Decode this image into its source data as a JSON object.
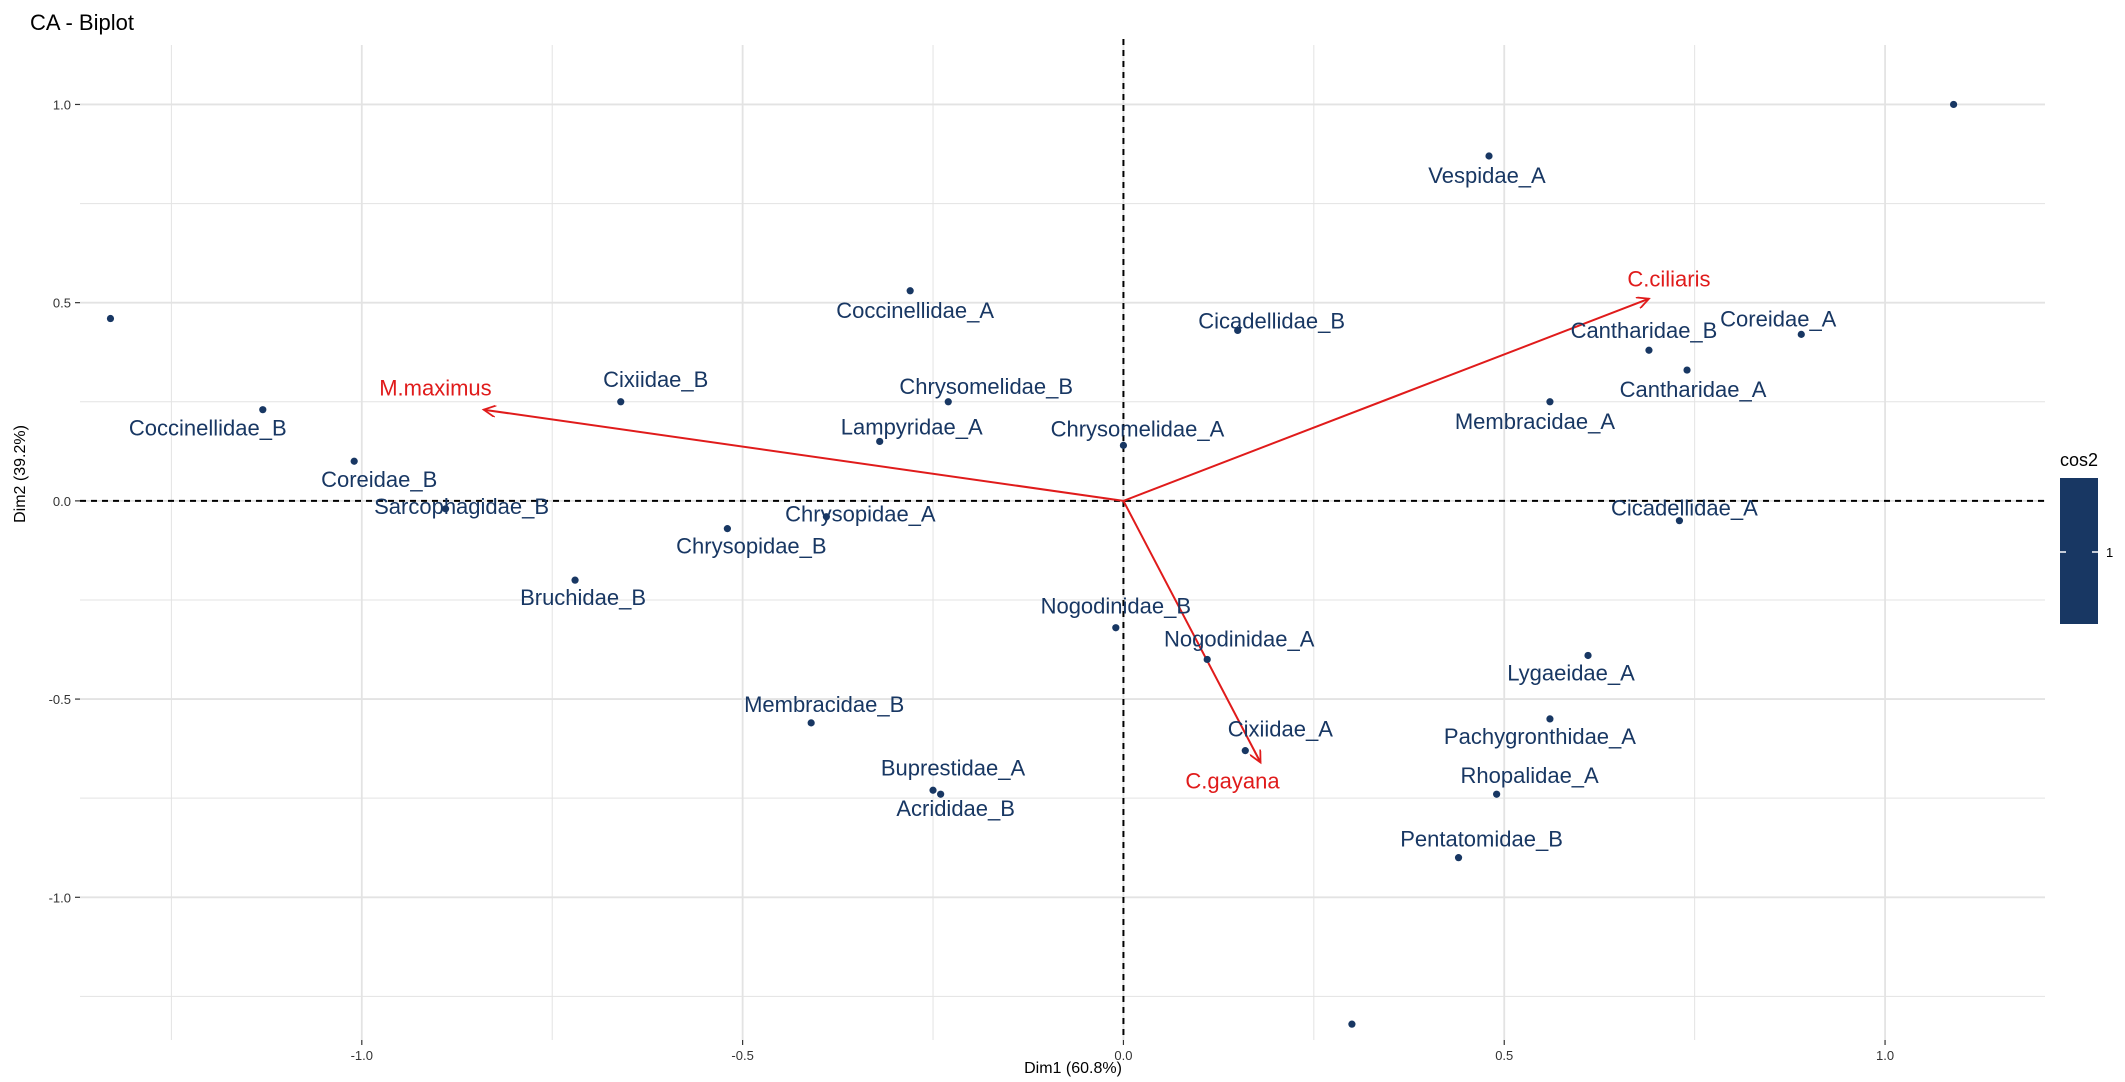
{
  "chart_data": {
    "type": "scatter",
    "title": "CA - Biplot",
    "xlabel": "Dim1 (60.8%)",
    "ylabel": "Dim2 (39.2%)",
    "xlim": [
      -1.37,
      1.21
    ],
    "ylim": [
      -1.36,
      1.15
    ],
    "x_ticks": [
      -1.0,
      -0.5,
      0.0,
      0.5,
      1.0
    ],
    "x_tick_labels": [
      "-1.0",
      "-0.5",
      "0.0",
      "0.5",
      "1.0"
    ],
    "y_ticks": [
      -1.0,
      -0.5,
      0.0,
      0.5,
      1.0
    ],
    "y_tick_labels": [
      "-1.0",
      "-0.5",
      "0.0",
      "0.5",
      "1.0"
    ],
    "grid": true,
    "colors": {
      "points": "#183763",
      "arrows": "#e01b1b",
      "grid": "#e3e3e3"
    },
    "points": [
      {
        "label": "",
        "x": -1.33,
        "y": 0.46
      },
      {
        "label": "Coccinellidae_B",
        "x": -1.13,
        "y": 0.23
      },
      {
        "label": "Coreidae_B",
        "x": -1.01,
        "y": 0.1
      },
      {
        "label": "Sarcophagidae_B",
        "x": -0.89,
        "y": -0.02
      },
      {
        "label": "Cixiidae_B",
        "x": -0.66,
        "y": 0.25
      },
      {
        "label": "Bruchidae_B",
        "x": -0.72,
        "y": -0.2
      },
      {
        "label": "Chrysopidae_B",
        "x": -0.52,
        "y": -0.07
      },
      {
        "label": "Chrysopidae_A",
        "x": -0.39,
        "y": -0.04
      },
      {
        "label": "Membracidae_B",
        "x": -0.41,
        "y": -0.56
      },
      {
        "label": "Lampyridae_A",
        "x": -0.32,
        "y": 0.15
      },
      {
        "label": "Coccinellidae_A",
        "x": -0.28,
        "y": 0.53
      },
      {
        "label": "Chrysomelidae_B",
        "x": -0.23,
        "y": 0.25
      },
      {
        "label": "Buprestidae_A",
        "x": -0.25,
        "y": -0.73
      },
      {
        "label": "Acrididae_B",
        "x": -0.24,
        "y": -0.74
      },
      {
        "label": "Nogodinidae_B",
        "x": -0.01,
        "y": -0.32
      },
      {
        "label": "Chrysomelidae_A",
        "x": 0.0,
        "y": 0.14
      },
      {
        "label": "Nogodinidae_A",
        "x": 0.11,
        "y": -0.4
      },
      {
        "label": "Cixiidae_A",
        "x": 0.16,
        "y": -0.63
      },
      {
        "label": "Cicadellidae_B",
        "x": 0.15,
        "y": 0.43
      },
      {
        "label": "",
        "x": 0.3,
        "y": -1.32
      },
      {
        "label": "Pentatomidae_B",
        "x": 0.44,
        "y": -0.9
      },
      {
        "label": "Vespidae_A",
        "x": 0.48,
        "y": 0.87
      },
      {
        "label": "Rhopalidae_A",
        "x": 0.49,
        "y": -0.74
      },
      {
        "label": "Membracidae_A",
        "x": 0.56,
        "y": 0.25
      },
      {
        "label": "Pachygronthidae_A",
        "x": 0.56,
        "y": -0.55
      },
      {
        "label": "Lygaeidae_A",
        "x": 0.61,
        "y": -0.39
      },
      {
        "label": "Cantharidae_B",
        "x": 0.69,
        "y": 0.38
      },
      {
        "label": "Cicadellidae_A",
        "x": 0.73,
        "y": -0.05
      },
      {
        "label": "Cantharidae_A",
        "x": 0.74,
        "y": 0.33
      },
      {
        "label": "Coreidae_A",
        "x": 0.89,
        "y": 0.42
      },
      {
        "label": "",
        "x": 1.09,
        "y": 1.0
      }
    ],
    "arrows": [
      {
        "label": "M.maximus",
        "x": -0.84,
        "y": 0.23
      },
      {
        "label": "C.ciliaris",
        "x": 0.69,
        "y": 0.51
      },
      {
        "label": "C.gayana",
        "x": 0.18,
        "y": -0.66
      }
    ],
    "legend": {
      "title": "cos2",
      "tick_label": "1",
      "color": "#183763",
      "position": "right"
    }
  }
}
